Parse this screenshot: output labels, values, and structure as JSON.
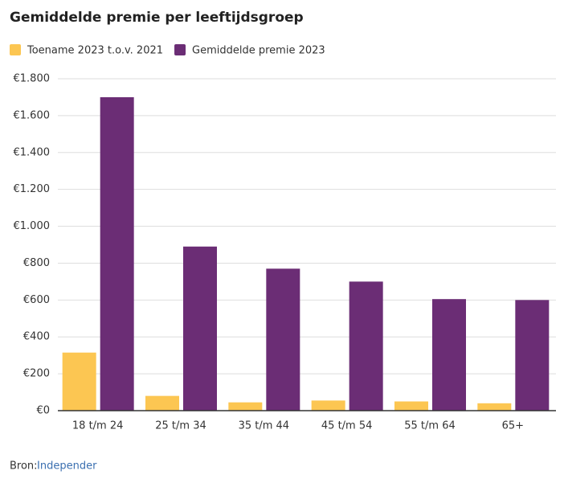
{
  "chart_data": {
    "type": "bar",
    "title": "Gemiddelde premie per leeftijdsgroep",
    "categories": [
      "18 t/m 24",
      "25 t/m 34",
      "35 t/m 44",
      "45 t/m 54",
      "55 t/m 64",
      "65+"
    ],
    "series": [
      {
        "name": "Toename 2023 t.o.v. 2021",
        "color": "#fcc652",
        "values": [
          315,
          80,
          45,
          55,
          50,
          40
        ]
      },
      {
        "name": "Gemiddelde premie 2023",
        "color": "#6b2d75",
        "values": [
          1700,
          890,
          770,
          700,
          605,
          600
        ]
      }
    ],
    "ylim": [
      0,
      1800
    ],
    "yticks": [
      {
        "value": 0,
        "label": "€0"
      },
      {
        "value": 200,
        "label": "€200"
      },
      {
        "value": 400,
        "label": "€400"
      },
      {
        "value": 600,
        "label": "€600"
      },
      {
        "value": 800,
        "label": "€800"
      },
      {
        "value": 1000,
        "label": "€1.000"
      },
      {
        "value": 1200,
        "label": "€1.200"
      },
      {
        "value": 1400,
        "label": "€1.400"
      },
      {
        "value": 1600,
        "label": "€1.600"
      },
      {
        "value": 1800,
        "label": "€1.800"
      }
    ],
    "grid": true,
    "source": {
      "prefix": "Bron:",
      "link": "Independer"
    }
  }
}
